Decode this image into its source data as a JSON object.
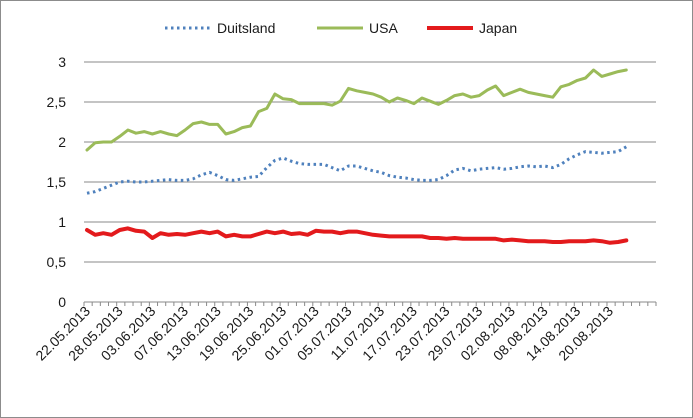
{
  "chart_data": {
    "type": "line",
    "title": "",
    "xlabel": "",
    "ylabel": "",
    "ylim": [
      0,
      3
    ],
    "yticks": [
      "0",
      "0,5",
      "1",
      "1,5",
      "2",
      "2,5",
      "3"
    ],
    "ytick_values": [
      0,
      0.5,
      1,
      1.5,
      2,
      2.5,
      3
    ],
    "grid": true,
    "legend_position": "top",
    "x_tick_labels": [
      "22.05.2013",
      "28.05.2013",
      "03.06.2013",
      "07.06.2013",
      "13.06.2013",
      "19.06.2013",
      "25.06.2013",
      "01.07.2013",
      "05.07.2013",
      "11.07.2013",
      "17.07.2013",
      "23.07.2013",
      "29.07.2013",
      "02.08.2013",
      "08.08.2013",
      "14.08.2013",
      "20.08.2013"
    ],
    "x_tick_index": [
      0,
      4,
      8,
      12,
      16,
      20,
      24,
      28,
      32,
      36,
      40,
      44,
      48,
      52,
      56,
      60,
      64
    ],
    "series": [
      {
        "name": "Duitsland",
        "color": "#4f81bd",
        "style": "dotted",
        "values": [
          1.36,
          1.38,
          1.42,
          1.46,
          1.5,
          1.51,
          1.5,
          1.5,
          1.51,
          1.52,
          1.53,
          1.52,
          1.52,
          1.54,
          1.59,
          1.62,
          1.58,
          1.53,
          1.52,
          1.54,
          1.56,
          1.57,
          1.68,
          1.77,
          1.8,
          1.76,
          1.73,
          1.72,
          1.72,
          1.72,
          1.68,
          1.64,
          1.7,
          1.7,
          1.67,
          1.64,
          1.62,
          1.58,
          1.56,
          1.55,
          1.53,
          1.52,
          1.52,
          1.53,
          1.58,
          1.65,
          1.67,
          1.64,
          1.66,
          1.67,
          1.68,
          1.66,
          1.67,
          1.69,
          1.7,
          1.69,
          1.7,
          1.68,
          1.72,
          1.79,
          1.84,
          1.88,
          1.87,
          1.86,
          1.87,
          1.88,
          1.94
        ]
      },
      {
        "name": "USA",
        "color": "#9bbb59",
        "style": "solid",
        "values": [
          1.9,
          1.99,
          2.0,
          2.0,
          2.07,
          2.15,
          2.11,
          2.13,
          2.1,
          2.13,
          2.1,
          2.08,
          2.15,
          2.23,
          2.25,
          2.22,
          2.22,
          2.1,
          2.13,
          2.18,
          2.2,
          2.38,
          2.42,
          2.6,
          2.54,
          2.53,
          2.48,
          2.48,
          2.48,
          2.48,
          2.46,
          2.51,
          2.67,
          2.64,
          2.62,
          2.6,
          2.56,
          2.5,
          2.55,
          2.52,
          2.48,
          2.55,
          2.51,
          2.47,
          2.52,
          2.58,
          2.6,
          2.56,
          2.58,
          2.65,
          2.7,
          2.58,
          2.62,
          2.66,
          2.62,
          2.6,
          2.58,
          2.56,
          2.69,
          2.72,
          2.77,
          2.8,
          2.9,
          2.82,
          2.85,
          2.88,
          2.9
        ]
      },
      {
        "name": "Japan",
        "color": "#e31a1c",
        "style": "solid",
        "values": [
          0.9,
          0.84,
          0.86,
          0.84,
          0.9,
          0.92,
          0.89,
          0.88,
          0.8,
          0.86,
          0.84,
          0.85,
          0.84,
          0.86,
          0.88,
          0.86,
          0.88,
          0.82,
          0.84,
          0.82,
          0.82,
          0.85,
          0.88,
          0.86,
          0.88,
          0.85,
          0.86,
          0.84,
          0.89,
          0.88,
          0.88,
          0.86,
          0.88,
          0.88,
          0.86,
          0.84,
          0.83,
          0.82,
          0.82,
          0.82,
          0.82,
          0.82,
          0.8,
          0.8,
          0.79,
          0.8,
          0.79,
          0.79,
          0.79,
          0.79,
          0.79,
          0.77,
          0.78,
          0.77,
          0.76,
          0.76,
          0.76,
          0.75,
          0.75,
          0.76,
          0.76,
          0.76,
          0.77,
          0.76,
          0.74,
          0.75,
          0.77
        ]
      }
    ]
  }
}
